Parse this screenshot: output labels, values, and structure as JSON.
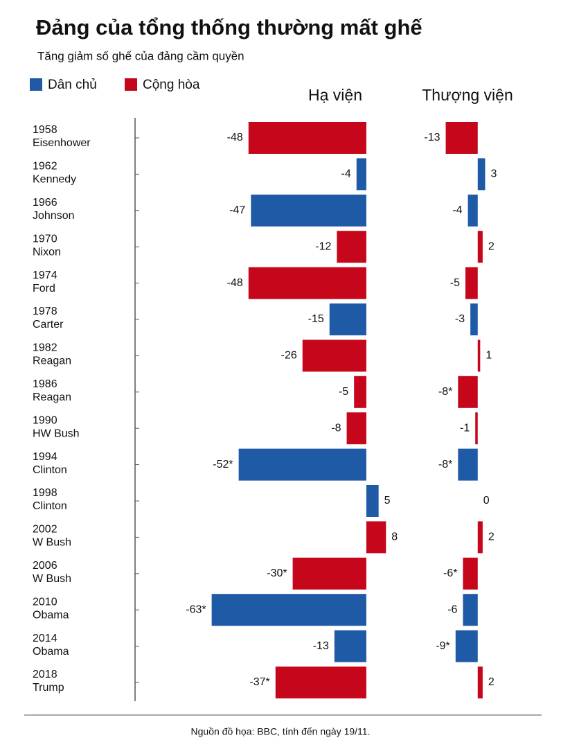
{
  "chart_data": {
    "type": "bar",
    "orientation": "horizontal",
    "title": "Đảng của tổng thống thường mất ghế",
    "subtitle": "Tăng giảm số ghế của đảng cầm quyền",
    "source": "Nguồn đồ họa: BBC, tính đến ngày 19/11.",
    "legend": [
      {
        "name": "Dân chủ",
        "color": "#1f5aa6"
      },
      {
        "name": "Cộng hòa",
        "color": "#c5061b"
      }
    ],
    "categories": [
      "1958",
      "1962",
      "1966",
      "1970",
      "1974",
      "1978",
      "1982",
      "1986",
      "1990",
      "1994",
      "1998",
      "2002",
      "2006",
      "2010",
      "2014",
      "2018"
    ],
    "presidents": [
      "Eisenhower",
      "Kennedy",
      "Johnson",
      "Nixon",
      "Ford",
      "Carter",
      "Reagan",
      "Reagan",
      "HW Bush",
      "Clinton",
      "Clinton",
      "W Bush",
      "W Bush",
      "Obama",
      "Obama",
      "Trump"
    ],
    "bar_colors": [
      "#c5061b",
      "#1f5aa6",
      "#1f5aa6",
      "#c5061b",
      "#c5061b",
      "#1f5aa6",
      "#c5061b",
      "#c5061b",
      "#c5061b",
      "#1f5aa6",
      "#1f5aa6",
      "#c5061b",
      "#c5061b",
      "#1f5aa6",
      "#1f5aa6",
      "#c5061b"
    ],
    "panels": [
      {
        "name": "Hạ viện",
        "xlim": [
          -66,
          13
        ],
        "values": [
          -48,
          -4,
          -47,
          -12,
          -48,
          -15,
          -26,
          -5,
          -8,
          -52,
          5,
          8,
          -30,
          -63,
          -13,
          -37
        ],
        "value_labels": [
          "-48",
          "-4",
          "-47",
          "-12",
          "-48",
          "-15",
          "-26",
          "-5",
          "-8",
          "-52*",
          "5",
          "8",
          "-30*",
          "-63*",
          "-13",
          "-37*"
        ]
      },
      {
        "name": "Thượng viện",
        "xlim": [
          -14,
          8.5
        ],
        "values": [
          -13,
          3,
          -4,
          2,
          -5,
          -3,
          1,
          -8,
          -1,
          -8,
          0,
          2,
          -6,
          -6,
          -9,
          2
        ],
        "value_labels": [
          "-13",
          "3",
          "-4",
          "2",
          "-5",
          "-3",
          "1",
          "-8*",
          "-1",
          "-8*",
          "0",
          "2",
          "-6*",
          "-6",
          "-9*",
          "2"
        ]
      }
    ]
  }
}
